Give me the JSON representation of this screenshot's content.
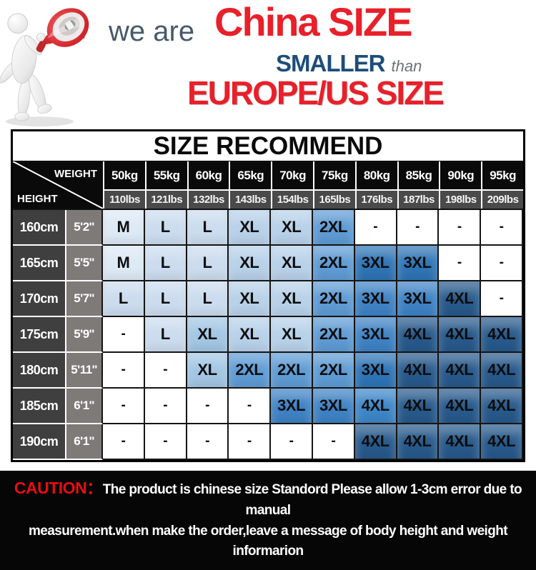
{
  "banner": {
    "we_are": "we are",
    "china_size": "China SIZE",
    "smaller": "SMALLER",
    "than": "than",
    "europe_size": "EUROPE/US SIZE",
    "accent_red": "#e8202a",
    "accent_navy": "#1d4d79",
    "mascot": "figure-with-megaphone"
  },
  "table": {
    "title": "SIZE RECOMMEND",
    "corner": {
      "weight": "WEIGHT",
      "height": "HEIGHT"
    },
    "weights_kg": [
      "50kg",
      "55kg",
      "60kg",
      "65kg",
      "70kg",
      "75kg",
      "80kg",
      "85kg",
      "90kg",
      "95kg"
    ],
    "weights_lbs": [
      "110lbs",
      "121lbs",
      "132lbs",
      "143lbs",
      "154lbs",
      "165lbs",
      "176lbs",
      "187lbs",
      "198lbs",
      "209lbs"
    ],
    "shades": {
      "w": "#ffffff",
      "m": "#dde9f5",
      "l": "#cbdcee",
      "xl": "#b7d1e9",
      "xl2": "#a2c6e4",
      "2xl": "#5e9bd4",
      "3xl": "#2e74b5",
      "3xl2": "#3e82c4",
      "4xl": "#27598b",
      "4xl2": "#3e86c8"
    },
    "rows": [
      {
        "cm": "160cm",
        "ft": "5'2''",
        "cells": [
          {
            "v": "M",
            "s": "m"
          },
          {
            "v": "L",
            "s": "l"
          },
          {
            "v": "L",
            "s": "l"
          },
          {
            "v": "XL",
            "s": "xl"
          },
          {
            "v": "XL",
            "s": "xl"
          },
          {
            "v": "2XL",
            "s": "2xl"
          },
          {
            "v": "-",
            "s": "w"
          },
          {
            "v": "-",
            "s": "w"
          },
          {
            "v": "-",
            "s": "w"
          },
          {
            "v": "-",
            "s": "w"
          }
        ]
      },
      {
        "cm": "165cm",
        "ft": "5'5''",
        "cells": [
          {
            "v": "M",
            "s": "m"
          },
          {
            "v": "L",
            "s": "l"
          },
          {
            "v": "L",
            "s": "l"
          },
          {
            "v": "XL",
            "s": "xl"
          },
          {
            "v": "XL",
            "s": "xl"
          },
          {
            "v": "2XL",
            "s": "2xl"
          },
          {
            "v": "3XL",
            "s": "3xl"
          },
          {
            "v": "3XL",
            "s": "3xl"
          },
          {
            "v": "-",
            "s": "w"
          },
          {
            "v": "-",
            "s": "w"
          }
        ]
      },
      {
        "cm": "170cm",
        "ft": "5'7''",
        "cells": [
          {
            "v": "L",
            "s": "l"
          },
          {
            "v": "L",
            "s": "l"
          },
          {
            "v": "L",
            "s": "l"
          },
          {
            "v": "XL",
            "s": "xl"
          },
          {
            "v": "XL",
            "s": "xl"
          },
          {
            "v": "2XL",
            "s": "2xl"
          },
          {
            "v": "3XL",
            "s": "3xl2"
          },
          {
            "v": "3XL",
            "s": "3xl2"
          },
          {
            "v": "4XL",
            "s": "4xl"
          },
          {
            "v": "-",
            "s": "w"
          }
        ]
      },
      {
        "cm": "175cm",
        "ft": "5'9''",
        "cells": [
          {
            "v": "-",
            "s": "w"
          },
          {
            "v": "L",
            "s": "l"
          },
          {
            "v": "XL",
            "s": "xl2"
          },
          {
            "v": "XL",
            "s": "xl"
          },
          {
            "v": "XL",
            "s": "xl"
          },
          {
            "v": "2XL",
            "s": "2xl"
          },
          {
            "v": "3XL",
            "s": "3xl2"
          },
          {
            "v": "4XL",
            "s": "4xl"
          },
          {
            "v": "4XL",
            "s": "4xl"
          },
          {
            "v": "4XL",
            "s": "4xl"
          }
        ]
      },
      {
        "cm": "180cm",
        "ft": "5'11''",
        "cells": [
          {
            "v": "-",
            "s": "w"
          },
          {
            "v": "-",
            "s": "w"
          },
          {
            "v": "XL",
            "s": "xl2"
          },
          {
            "v": "2XL",
            "s": "2xl"
          },
          {
            "v": "2XL",
            "s": "2xl"
          },
          {
            "v": "2XL",
            "s": "2xl"
          },
          {
            "v": "3XL",
            "s": "3xl"
          },
          {
            "v": "4XL",
            "s": "4xl"
          },
          {
            "v": "4XL",
            "s": "4xl"
          },
          {
            "v": "4XL",
            "s": "4xl"
          }
        ]
      },
      {
        "cm": "185cm",
        "ft": "6'1''",
        "cells": [
          {
            "v": "-",
            "s": "w"
          },
          {
            "v": "-",
            "s": "w"
          },
          {
            "v": "-",
            "s": "w"
          },
          {
            "v": "-",
            "s": "w"
          },
          {
            "v": "3XL",
            "s": "3xl2"
          },
          {
            "v": "3XL",
            "s": "3xl2"
          },
          {
            "v": "4XL",
            "s": "4xl2"
          },
          {
            "v": "4XL",
            "s": "4xl"
          },
          {
            "v": "4XL",
            "s": "4xl"
          },
          {
            "v": "4XL",
            "s": "4xl"
          }
        ]
      },
      {
        "cm": "190cm",
        "ft": "6'1''",
        "cells": [
          {
            "v": "-",
            "s": "w"
          },
          {
            "v": "-",
            "s": "w"
          },
          {
            "v": "-",
            "s": "w"
          },
          {
            "v": "-",
            "s": "w"
          },
          {
            "v": "-",
            "s": "w"
          },
          {
            "v": "-",
            "s": "w"
          },
          {
            "v": "4XL",
            "s": "4xl"
          },
          {
            "v": "4XL",
            "s": "4xl"
          },
          {
            "v": "4XL",
            "s": "4xl"
          },
          {
            "v": "4XL",
            "s": "4xl"
          }
        ]
      }
    ]
  },
  "caution": {
    "label": "CAUTION：",
    "line1": "The product is chinese size Standord Please allow 1-3cm error due to manual",
    "line2": "measurement.when make the order,leave a message of body height and weight informarion"
  },
  "chart_data": {
    "type": "table",
    "title": "SIZE RECOMMEND",
    "columns_weight_kg": [
      50,
      55,
      60,
      65,
      70,
      75,
      80,
      85,
      90,
      95
    ],
    "columns_weight_lbs": [
      110,
      121,
      132,
      143,
      154,
      165,
      176,
      187,
      198,
      209
    ],
    "rows_height": [
      "160cm / 5'2''",
      "165cm / 5'5''",
      "170cm / 5'7''",
      "175cm / 5'9''",
      "180cm / 5'11''",
      "185cm / 6'1''",
      "190cm / 6'1''"
    ],
    "values": [
      [
        "M",
        "L",
        "L",
        "XL",
        "XL",
        "2XL",
        "-",
        "-",
        "-",
        "-"
      ],
      [
        "M",
        "L",
        "L",
        "XL",
        "XL",
        "2XL",
        "3XL",
        "3XL",
        "-",
        "-"
      ],
      [
        "L",
        "L",
        "L",
        "XL",
        "XL",
        "2XL",
        "3XL",
        "3XL",
        "4XL",
        "-"
      ],
      [
        "-",
        "L",
        "XL",
        "XL",
        "XL",
        "2XL",
        "3XL",
        "4XL",
        "4XL",
        "4XL"
      ],
      [
        "-",
        "-",
        "XL",
        "2XL",
        "2XL",
        "2XL",
        "3XL",
        "4XL",
        "4XL",
        "4XL"
      ],
      [
        "-",
        "-",
        "-",
        "-",
        "3XL",
        "3XL",
        "4XL",
        "4XL",
        "4XL",
        "4XL"
      ],
      [
        "-",
        "-",
        "-",
        "-",
        "-",
        "-",
        "4XL",
        "4XL",
        "4XL",
        "4XL"
      ]
    ],
    "legend_note": "darker blue = larger size, diagonal gradient"
  }
}
